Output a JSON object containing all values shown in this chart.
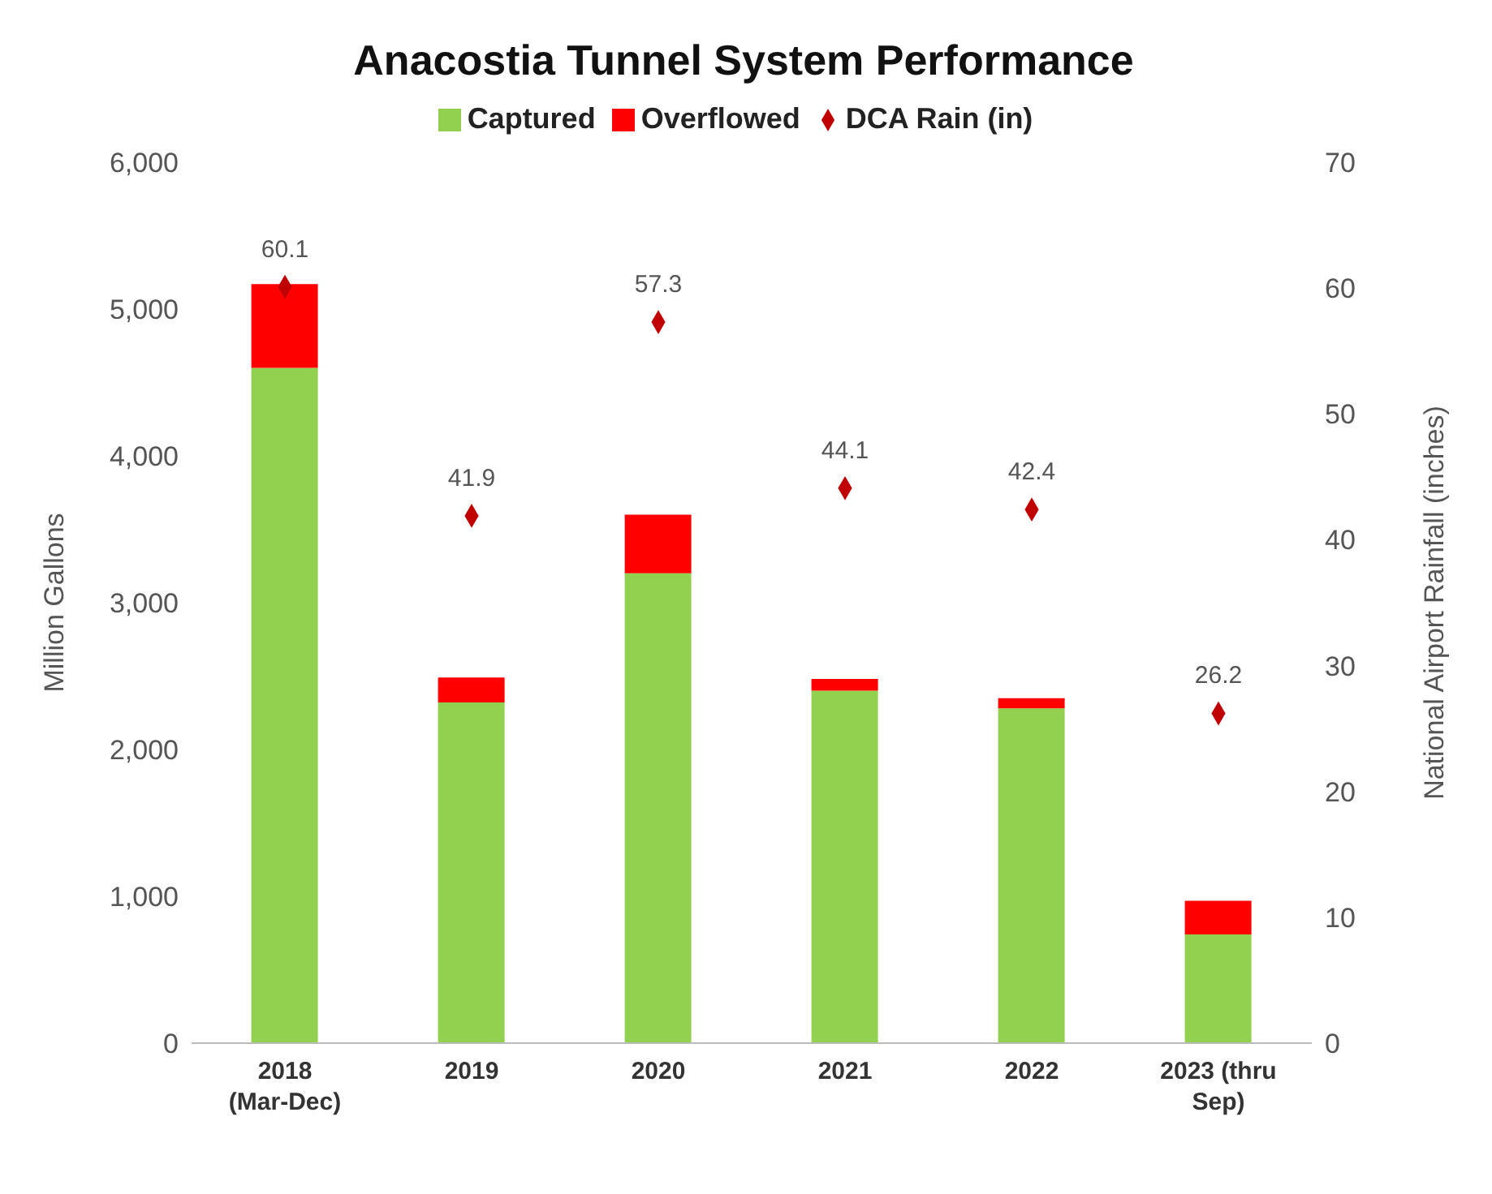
{
  "chart_data": {
    "type": "bar",
    "title": "Anacostia Tunnel System Performance",
    "ylabel": "Million Gallons",
    "y2label": "National Airport Rainfall (inches)",
    "categories": [
      "2018\n(Mar-Dec)",
      "2019",
      "2020",
      "2021",
      "2022",
      "2023 (thru\nSep)"
    ],
    "stacked": true,
    "legend": "top",
    "grid": false,
    "ylim": [
      0,
      6000
    ],
    "yticks": [
      {
        "value": 0,
        "label": "0"
      },
      {
        "value": 1000,
        "label": "1,000"
      },
      {
        "value": 2000,
        "label": "2,000"
      },
      {
        "value": 3000,
        "label": "3,000"
      },
      {
        "value": 4000,
        "label": "4,000"
      },
      {
        "value": 5000,
        "label": "5,000"
      },
      {
        "value": 6000,
        "label": "6,000"
      }
    ],
    "y2lim": [
      0,
      70
    ],
    "y2ticks": [
      0,
      10,
      20,
      30,
      40,
      50,
      60,
      70
    ],
    "series": [
      {
        "name": "Captured",
        "color": "#92d050",
        "values": [
          4600,
          2320,
          3200,
          2400,
          2280,
          740
        ]
      },
      {
        "name": "Overflowed",
        "color": "#ff0000",
        "values": [
          570,
          170,
          400,
          80,
          70,
          230
        ]
      },
      {
        "name": "DCA Rain (in)",
        "type": "scatter",
        "axis": "y2",
        "marker": "diamond",
        "color": "#c00000",
        "values": [
          60.1,
          41.9,
          57.3,
          44.1,
          42.4,
          26.2
        ],
        "value_labels": [
          "60.1",
          "41.9",
          "57.3",
          "44.1",
          "42.4",
          "26.2"
        ]
      }
    ]
  }
}
